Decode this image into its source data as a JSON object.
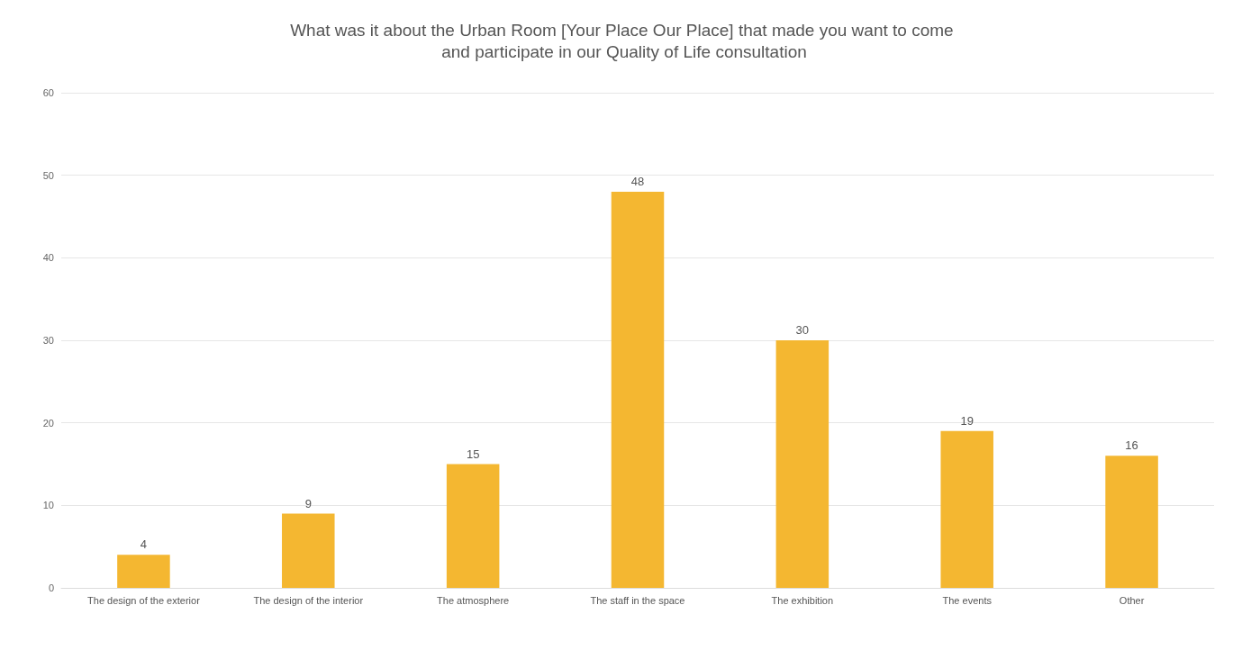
{
  "chart_data": {
    "type": "bar",
    "title": "What was it about the Urban Room [Your Place Our Place] that made you want to come and participate in our Quality of Life consultation",
    "categories": [
      "The design of the exterior",
      "The design of the interior",
      "The atmosphere",
      "The staff in the space",
      "The exhibition",
      "The events",
      "Other"
    ],
    "values": [
      4,
      9,
      15,
      48,
      30,
      19,
      16
    ],
    "color": "#f4b731",
    "ylim": [
      0,
      60
    ],
    "yticks": [
      0,
      10,
      20,
      30,
      40,
      50,
      60
    ],
    "grid": "y",
    "data_labels": true
  }
}
